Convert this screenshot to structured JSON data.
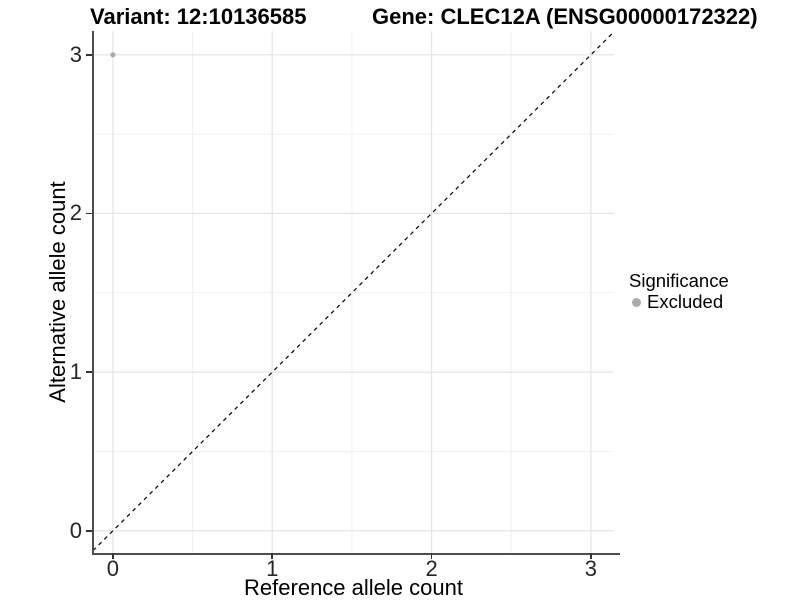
{
  "colors": {
    "point": "#ababab",
    "grid_major": "#e4e4e4",
    "grid_minor": "#f1f1f1",
    "axis_line": "#4d4d4d",
    "tick_mark": "#333333",
    "reference_line": "#000000",
    "text": "#000000"
  },
  "chart_data": {
    "type": "scatter",
    "titles": [
      "Variant: 12:10136585",
      "Gene: CLEC12A (ENSG00000172322)"
    ],
    "xlabel": "Reference allele count",
    "ylabel": "Alternative allele count",
    "xlim": [
      -0.125,
      3.145
    ],
    "ylim": [
      -0.14,
      3.15
    ],
    "xticks": [
      0,
      1,
      2,
      3
    ],
    "yticks": [
      0,
      1,
      2,
      3
    ],
    "minor_ticks": [
      0.5,
      1.5,
      2.5
    ],
    "grid": {
      "major": true,
      "minor": true
    },
    "reference_line": {
      "slope": 1,
      "intercept": 0,
      "style": "dashed"
    },
    "legend": {
      "position": "right",
      "title": "Significance",
      "items": [
        {
          "label": "Excluded",
          "color": "#ababab"
        }
      ]
    },
    "series": [
      {
        "name": "Excluded",
        "color": "#ababab",
        "points": [
          {
            "x": 0,
            "y": 3
          }
        ]
      }
    ]
  }
}
